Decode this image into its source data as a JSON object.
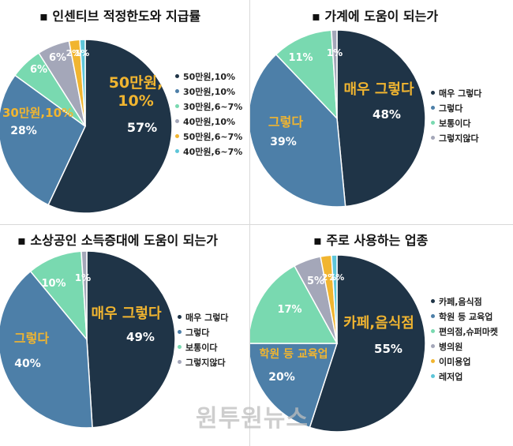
{
  "watermark": "원투원뉴스",
  "chart_data": [
    {
      "type": "pie",
      "title": "인센티브 적정한도와 지급률",
      "title_bullet": "▪",
      "categories": [
        "50만원,10%",
        "30만원,10%",
        "30만원,6~7%",
        "40만원,10%",
        "50만원,6~7%",
        "40만원,6~7%"
      ],
      "values": [
        57,
        28,
        6,
        6,
        2,
        1
      ],
      "labels": [
        "57%",
        "28%",
        "6%",
        "6%",
        "2%",
        "1%"
      ],
      "callouts": [
        "50만원, 10%",
        "30만원,10%"
      ],
      "colors": [
        "#1f3447",
        "#4d7fa8",
        "#79d9b0",
        "#a4a7b9",
        "#f1b530",
        "#5ec6d9"
      ],
      "legend_text_colors": [
        "#222222",
        "#222222",
        "#222222",
        "#222222",
        "#222222",
        "#222222"
      ],
      "legend_position": "right"
    },
    {
      "type": "pie",
      "title": "가계에 도움이 되는가",
      "title_bullet": "▪",
      "categories": [
        "매우 그렇다",
        "그렇다",
        "보통이다",
        "그렇지않다"
      ],
      "values": [
        48,
        39,
        11,
        1
      ],
      "labels": [
        "48%",
        "39%",
        "11%",
        "1%"
      ],
      "callouts": [
        "매우 그렇다",
        "그렇다"
      ],
      "colors": [
        "#1f3447",
        "#4d7fa8",
        "#79d9b0",
        "#a4a7b9"
      ],
      "legend_text_colors": [
        "#222222",
        "#222222",
        "#222222",
        "#222222"
      ],
      "legend_position": "right"
    },
    {
      "type": "pie",
      "title": "소상공인 소득증대에 도움이 되는가",
      "title_bullet": "▪",
      "categories": [
        "매우 그렇다",
        "그렇다",
        "보통이다",
        "그렇지않다"
      ],
      "values": [
        49,
        40,
        10,
        1
      ],
      "labels": [
        "49%",
        "40%",
        "10%",
        "1%"
      ],
      "callouts": [
        "매우 그렇다",
        "그렇다"
      ],
      "colors": [
        "#1f3447",
        "#4d7fa8",
        "#79d9b0",
        "#a4a7b9"
      ],
      "legend_text_colors": [
        "#222222",
        "#222222",
        "#222222",
        "#222222"
      ],
      "legend_position": "right"
    },
    {
      "type": "pie",
      "title": "주로 사용하는 업종",
      "title_bullet": "▪",
      "categories": [
        "카페,음식점",
        "학원 등 교육업",
        "편의점,슈퍼마켓",
        "병의원",
        "이미용업",
        "레저업"
      ],
      "values": [
        55,
        20,
        17,
        5,
        2,
        1
      ],
      "labels": [
        "55%",
        "20%",
        "17%",
        "5%",
        "2%",
        "1%"
      ],
      "callouts": [
        "카페,음식점",
        "학원 등 교육업"
      ],
      "colors": [
        "#1f3447",
        "#4d7fa8",
        "#79d9b0",
        "#a4a7b9",
        "#f1b530",
        "#5ec6d9"
      ],
      "legend_text_colors": [
        "#222222",
        "#222222",
        "#222222",
        "#222222",
        "#222222",
        "#222222"
      ],
      "legend_position": "right"
    }
  ]
}
